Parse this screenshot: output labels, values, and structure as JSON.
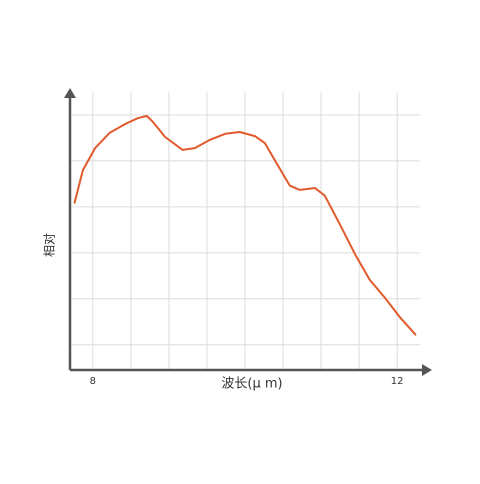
{
  "chart_data": {
    "type": "line",
    "xlabel": "波长(μ m)",
    "ylabel": "相对",
    "x": [
      7.76,
      7.87,
      8.03,
      8.22,
      8.42,
      8.59,
      8.71,
      8.79,
      8.95,
      9.18,
      9.34,
      9.54,
      9.74,
      9.93,
      10.13,
      10.26,
      10.43,
      10.59,
      10.72,
      10.92,
      11.05,
      11.25,
      11.45,
      11.64,
      11.84,
      12.04,
      12.24
    ],
    "series": [
      {
        "color": "#e05a2b",
        "values": [
          4.09,
          4.8,
          5.28,
          5.61,
          5.8,
          5.93,
          5.98,
          5.85,
          5.52,
          5.24,
          5.28,
          5.46,
          5.59,
          5.63,
          5.54,
          5.39,
          4.91,
          4.46,
          4.37,
          4.41,
          4.24,
          3.61,
          2.96,
          2.41,
          2.02,
          1.59,
          1.22
        ]
      }
    ],
    "xlim": [
      7.7,
      12.3
    ],
    "ylim": [
      0.45,
      6.5
    ],
    "xticks": [
      8,
      {
        "value": 8.5,
        "label": null
      },
      {
        "value": 9,
        "label": null
      },
      {
        "value": 9.5,
        "label": null
      },
      {
        "value": 10,
        "label": null
      },
      {
        "value": 10.5,
        "label": null
      },
      {
        "value": 11,
        "label": null
      },
      {
        "value": 11.5,
        "label": null
      },
      12
    ],
    "yticks": [
      {
        "value": 1,
        "label": null
      },
      {
        "value": 2,
        "label": null
      },
      {
        "value": 3,
        "label": null
      },
      {
        "value": 4,
        "label": null
      },
      {
        "value": 5,
        "label": null
      },
      {
        "value": 6,
        "label": null
      }
    ],
    "grid": true
  }
}
